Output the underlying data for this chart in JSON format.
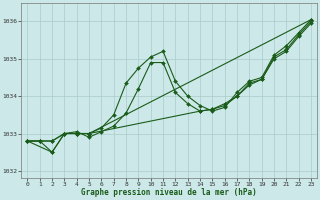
{
  "title": "Graphe pression niveau de la mer (hPa)",
  "bg_color": "#cce8e8",
  "grid_color": "#aacccc",
  "line_color": "#1a5c1a",
  "xlim": [
    -0.5,
    23.5
  ],
  "ylim": [
    1031.8,
    1036.5
  ],
  "yticks": [
    1032,
    1033,
    1034,
    1035,
    1036
  ],
  "xticks": [
    0,
    1,
    2,
    3,
    4,
    5,
    6,
    7,
    8,
    9,
    10,
    11,
    12,
    13,
    14,
    15,
    16,
    17,
    18,
    19,
    20,
    21,
    22,
    23
  ],
  "series": [
    {
      "x": [
        0,
        1,
        2,
        3,
        4,
        5,
        23
      ],
      "y": [
        1032.8,
        1032.8,
        1032.8,
        1033.0,
        1033.0,
        1033.0,
        1036.05
      ]
    },
    {
      "x": [
        0,
        2,
        3,
        4,
        5,
        6,
        7,
        8,
        9,
        10,
        11,
        12,
        13,
        14,
        15,
        16,
        17,
        18,
        19,
        20,
        21,
        22,
        23
      ],
      "y": [
        1032.8,
        1032.5,
        1033.0,
        1033.0,
        1033.0,
        1033.15,
        1033.5,
        1034.35,
        1034.75,
        1035.05,
        1035.2,
        1034.4,
        1034.0,
        1033.75,
        1033.6,
        1033.7,
        1034.1,
        1034.4,
        1034.5,
        1035.1,
        1035.35,
        1035.7,
        1036.05
      ]
    },
    {
      "x": [
        0,
        1,
        2,
        3,
        4,
        5,
        6,
        7,
        8,
        9,
        10,
        11,
        12,
        13,
        14,
        15,
        16,
        17,
        18,
        19,
        20,
        21,
        22,
        23
      ],
      "y": [
        1032.8,
        1032.8,
        1032.5,
        1033.0,
        1033.05,
        1032.9,
        1033.05,
        1033.2,
        1033.55,
        1034.2,
        1034.9,
        1034.9,
        1034.1,
        1033.8,
        1033.6,
        1033.65,
        1033.75,
        1034.0,
        1034.3,
        1034.45,
        1035.0,
        1035.2,
        1035.6,
        1035.95
      ]
    },
    {
      "x": [
        0,
        1,
        2,
        3,
        4,
        5,
        14,
        15,
        16,
        17,
        18,
        19,
        20,
        21,
        22,
        23
      ],
      "y": [
        1032.8,
        1032.8,
        1032.8,
        1033.0,
        1033.0,
        1033.0,
        1033.6,
        1033.65,
        1033.8,
        1034.0,
        1034.35,
        1034.45,
        1035.05,
        1035.25,
        1035.65,
        1036.0
      ]
    }
  ]
}
